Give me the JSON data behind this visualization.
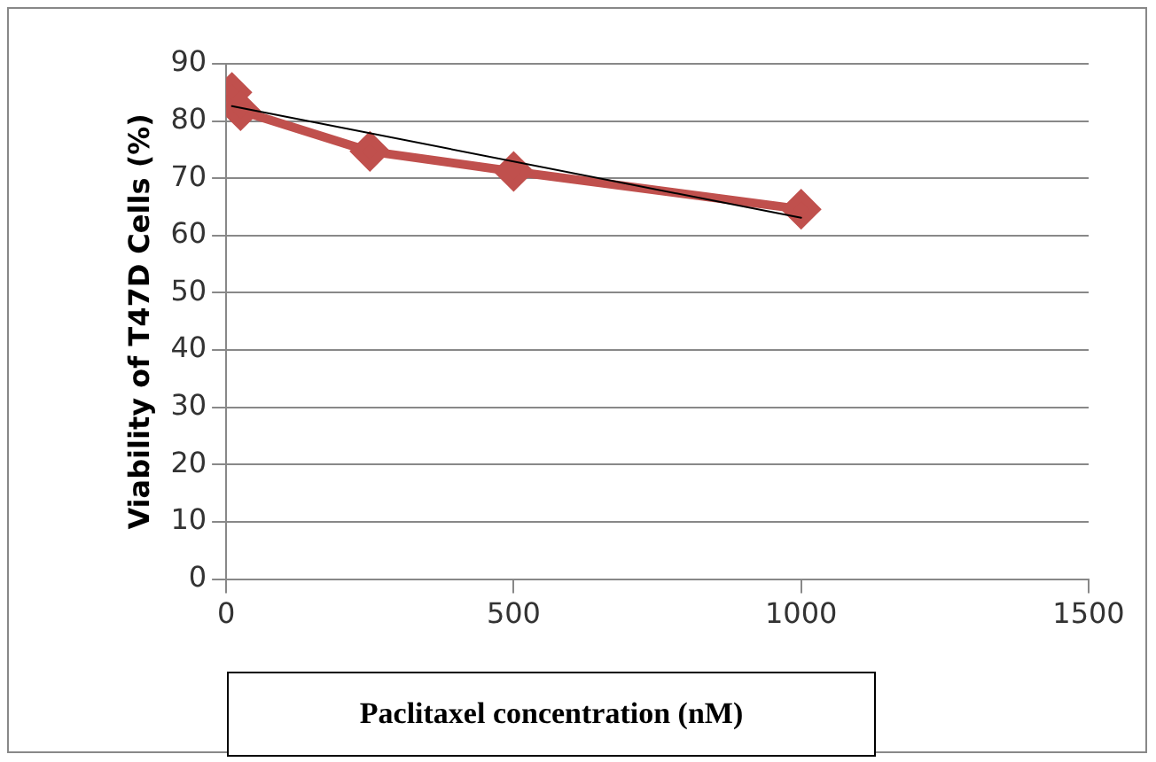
{
  "chart_data": {
    "type": "line",
    "xlabel": "Paclitaxel concentration (nM)",
    "ylabel": "Viability of T47D Cells (%)",
    "x": [
      10,
      25,
      250,
      500,
      1000
    ],
    "series": [
      {
        "color": "#c0504d",
        "values": [
          85,
          81.8,
          74.7,
          71.2,
          64.6
        ],
        "marker": "diamond"
      },
      {
        "type": "line",
        "color": "#000000",
        "x": [
          10,
          1000
        ],
        "values": [
          82.6,
          63.1
        ],
        "marker": "none"
      }
    ],
    "xlim": [
      0,
      1500
    ],
    "xticks": [
      0,
      500,
      1000,
      1500
    ],
    "ylim": [
      0,
      90
    ],
    "yticks": [
      0,
      10,
      20,
      30,
      40,
      50,
      60,
      70,
      80,
      90
    ],
    "grid": "y",
    "legend": false
  }
}
